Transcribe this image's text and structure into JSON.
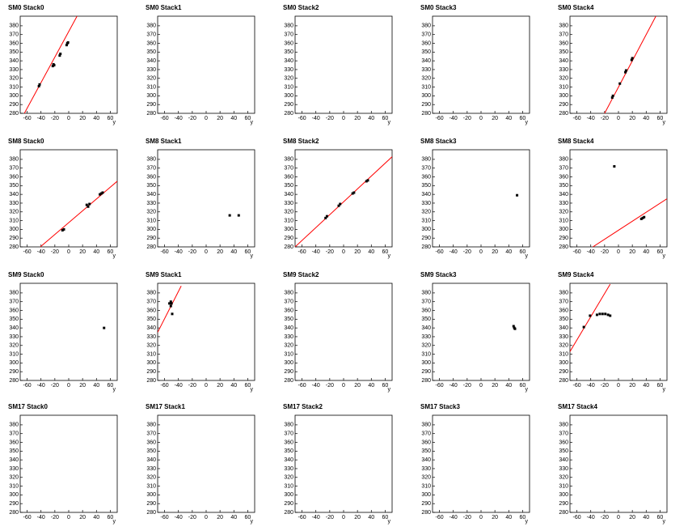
{
  "chart_data": [
    {
      "type": "scatter",
      "title": "SM0 Stack0",
      "xlabel": "y",
      "xlim": [
        -70,
        70
      ],
      "ylim": [
        280,
        391
      ],
      "xticks": [
        -60,
        -40,
        -20,
        0,
        20,
        40,
        60
      ],
      "yticks": [
        280,
        290,
        300,
        310,
        320,
        330,
        340,
        350,
        360,
        370,
        380
      ],
      "color": "#000000",
      "points": {
        "x": [
          -43,
          -42,
          -23,
          -22,
          -21,
          -13,
          -12,
          -3,
          -2,
          -1
        ],
        "y": [
          311,
          313,
          334,
          336,
          335,
          346,
          348,
          358,
          360,
          361
        ]
      },
      "fit": {
        "x": [
          -64,
          12
        ],
        "y": [
          280,
          391
        ],
        "color": "#ff0000"
      }
    },
    {
      "type": "scatter",
      "title": "SM0 Stack1",
      "xlabel": "y",
      "xlim": [
        -70,
        70
      ],
      "ylim": [
        280,
        391
      ],
      "xticks": [
        -60,
        -40,
        -20,
        0,
        20,
        40,
        60
      ],
      "yticks": [
        280,
        290,
        300,
        310,
        320,
        330,
        340,
        350,
        360,
        370,
        380
      ],
      "color": "#000000",
      "points": {
        "x": [],
        "y": []
      }
    },
    {
      "type": "scatter",
      "title": "SM0 Stack2",
      "xlabel": "y",
      "xlim": [
        -70,
        70
      ],
      "ylim": [
        280,
        391
      ],
      "xticks": [
        -60,
        -40,
        -20,
        0,
        20,
        40,
        60
      ],
      "yticks": [
        280,
        290,
        300,
        310,
        320,
        330,
        340,
        350,
        360,
        370,
        380
      ],
      "color": "#000000",
      "points": {
        "x": [],
        "y": []
      }
    },
    {
      "type": "scatter",
      "title": "SM0 Stack3",
      "xlabel": "y",
      "xlim": [
        -70,
        70
      ],
      "ylim": [
        280,
        391
      ],
      "xticks": [
        -60,
        -40,
        -20,
        0,
        20,
        40,
        60
      ],
      "yticks": [
        280,
        290,
        300,
        310,
        320,
        330,
        340,
        350,
        360,
        370,
        380
      ],
      "color": "#000000",
      "points": {
        "x": [],
        "y": []
      }
    },
    {
      "type": "scatter",
      "title": "SM0 Stack4",
      "xlabel": "y",
      "xlim": [
        -70,
        70
      ],
      "ylim": [
        280,
        391
      ],
      "xticks": [
        -60,
        -40,
        -20,
        0,
        20,
        40,
        60
      ],
      "yticks": [
        280,
        290,
        300,
        310,
        320,
        330,
        340,
        350,
        360,
        370,
        380
      ],
      "color": "#000000",
      "points": {
        "x": [
          -9,
          -8,
          2,
          10,
          11,
          19,
          20
        ],
        "y": [
          298,
          300,
          314,
          327,
          329,
          341,
          343
        ]
      },
      "fit": {
        "x": [
          -20,
          54
        ],
        "y": [
          280,
          391
        ],
        "color": "#ff0000"
      }
    },
    {
      "type": "scatter",
      "title": "SM8 Stack0",
      "xlabel": "y",
      "xlim": [
        -70,
        70
      ],
      "ylim": [
        280,
        391
      ],
      "xticks": [
        -60,
        -40,
        -20,
        0,
        20,
        40,
        60
      ],
      "yticks": [
        280,
        290,
        300,
        310,
        320,
        330,
        340,
        350,
        360,
        370,
        380
      ],
      "color": "#000000",
      "points": {
        "x": [
          -9,
          -7,
          26,
          28,
          30,
          45,
          47,
          49
        ],
        "y": [
          299,
          300,
          328,
          326,
          329,
          340,
          341,
          342
        ]
      },
      "fit": {
        "x": [
          -41,
          70
        ],
        "y": [
          280,
          355
        ],
        "color": "#ff0000"
      }
    },
    {
      "type": "scatter",
      "title": "SM8 Stack1",
      "xlabel": "y",
      "xlim": [
        -70,
        70
      ],
      "ylim": [
        280,
        391
      ],
      "xticks": [
        -60,
        -40,
        -20,
        0,
        20,
        40,
        60
      ],
      "yticks": [
        280,
        290,
        300,
        310,
        320,
        330,
        340,
        350,
        360,
        370,
        380
      ],
      "color": "#000000",
      "points": {
        "x": [
          34,
          47
        ],
        "y": [
          316,
          316
        ]
      }
    },
    {
      "type": "scatter",
      "title": "SM8 Stack2",
      "xlabel": "y",
      "xlim": [
        -70,
        70
      ],
      "ylim": [
        280,
        391
      ],
      "xticks": [
        -60,
        -40,
        -20,
        0,
        20,
        40,
        60
      ],
      "yticks": [
        280,
        290,
        300,
        310,
        320,
        330,
        340,
        350,
        360,
        370,
        380
      ],
      "color": "#000000",
      "points": {
        "x": [
          -26,
          -24,
          -7,
          -5,
          13,
          15,
          33,
          35
        ],
        "y": [
          313,
          315,
          327,
          329,
          341,
          342,
          355,
          356
        ]
      },
      "fit": {
        "x": [
          -70,
          70
        ],
        "y": [
          280,
          383
        ],
        "color": "#ff0000"
      }
    },
    {
      "type": "scatter",
      "title": "SM8 Stack3",
      "xlabel": "y",
      "xlim": [
        -70,
        70
      ],
      "ylim": [
        280,
        391
      ],
      "xticks": [
        -60,
        -40,
        -20,
        0,
        20,
        40,
        60
      ],
      "yticks": [
        280,
        290,
        300,
        310,
        320,
        330,
        340,
        350,
        360,
        370,
        380
      ],
      "color": "#000000",
      "points": {
        "x": [
          52
        ],
        "y": [
          339
        ]
      }
    },
    {
      "type": "scatter",
      "title": "SM8 Stack4",
      "xlabel": "y",
      "xlim": [
        -70,
        70
      ],
      "ylim": [
        280,
        391
      ],
      "xticks": [
        -60,
        -40,
        -20,
        0,
        20,
        40,
        60
      ],
      "yticks": [
        280,
        290,
        300,
        310,
        320,
        330,
        340,
        350,
        360,
        370,
        380
      ],
      "color": "#000000",
      "points": {
        "x": [
          -6,
          33,
          35,
          37
        ],
        "y": [
          372,
          312,
          313,
          314
        ]
      },
      "fit": {
        "x": [
          -37,
          70
        ],
        "y": [
          280,
          335
        ],
        "color": "#ff0000"
      }
    },
    {
      "type": "scatter",
      "title": "SM9 Stack0",
      "xlabel": "y",
      "xlim": [
        -70,
        70
      ],
      "ylim": [
        280,
        391
      ],
      "xticks": [
        -60,
        -40,
        -20,
        0,
        20,
        40,
        60
      ],
      "yticks": [
        280,
        290,
        300,
        310,
        320,
        330,
        340,
        350,
        360,
        370,
        380
      ],
      "color": "#000000",
      "points": {
        "x": [
          51
        ],
        "y": [
          340
        ]
      }
    },
    {
      "type": "scatter",
      "title": "SM9 Stack1",
      "xlabel": "y",
      "xlim": [
        -70,
        70
      ],
      "ylim": [
        280,
        391
      ],
      "xticks": [
        -60,
        -40,
        -20,
        0,
        20,
        40,
        60
      ],
      "yticks": [
        280,
        290,
        300,
        310,
        320,
        330,
        340,
        350,
        360,
        370,
        380
      ],
      "color": "#000000",
      "points": {
        "x": [
          -53,
          -51,
          -50,
          -51,
          -49
        ],
        "y": [
          368,
          370,
          368,
          365,
          356
        ]
      },
      "fit": {
        "x": [
          -70,
          -36
        ],
        "y": [
          335,
          388
        ],
        "color": "#ff0000"
      }
    },
    {
      "type": "scatter",
      "title": "SM9 Stack2",
      "xlabel": "y",
      "xlim": [
        -70,
        70
      ],
      "ylim": [
        280,
        391
      ],
      "xticks": [
        -60,
        -40,
        -20,
        0,
        20,
        40,
        60
      ],
      "yticks": [
        280,
        290,
        300,
        310,
        320,
        330,
        340,
        350,
        360,
        370,
        380
      ],
      "color": "#000000",
      "points": {
        "x": [],
        "y": []
      }
    },
    {
      "type": "scatter",
      "title": "SM9 Stack3",
      "xlabel": "y",
      "xlim": [
        -70,
        70
      ],
      "ylim": [
        280,
        391
      ],
      "xticks": [
        -60,
        -40,
        -20,
        0,
        20,
        40,
        60
      ],
      "yticks": [
        280,
        290,
        300,
        310,
        320,
        330,
        340,
        350,
        360,
        370,
        380
      ],
      "color": "#000000",
      "points": {
        "x": [
          47,
          48,
          49
        ],
        "y": [
          342,
          340,
          339
        ]
      }
    },
    {
      "type": "scatter",
      "title": "SM9 Stack4",
      "xlabel": "y",
      "xlim": [
        -70,
        70
      ],
      "ylim": [
        280,
        391
      ],
      "xticks": [
        -60,
        -40,
        -20,
        0,
        20,
        40,
        60
      ],
      "yticks": [
        280,
        290,
        300,
        310,
        320,
        330,
        340,
        350,
        360,
        370,
        380
      ],
      "color": "#000000",
      "points": {
        "x": [
          -50,
          -41,
          -31,
          -27,
          -23,
          -19,
          -15,
          -12
        ],
        "y": [
          341,
          354,
          355,
          356,
          356,
          356,
          355,
          354
        ]
      },
      "fit": {
        "x": [
          -70,
          -12
        ],
        "y": [
          313,
          390
        ],
        "color": "#ff0000"
      }
    },
    {
      "type": "scatter",
      "title": "SM17 Stack0",
      "xlabel": "y",
      "xlim": [
        -70,
        70
      ],
      "ylim": [
        280,
        391
      ],
      "xticks": [
        -60,
        -40,
        -20,
        0,
        20,
        40,
        60
      ],
      "yticks": [
        280,
        290,
        300,
        310,
        320,
        330,
        340,
        350,
        360,
        370,
        380
      ],
      "color": "#000000",
      "points": {
        "x": [],
        "y": []
      }
    },
    {
      "type": "scatter",
      "title": "SM17 Stack1",
      "xlabel": "y",
      "xlim": [
        -70,
        70
      ],
      "ylim": [
        280,
        391
      ],
      "xticks": [
        -60,
        -40,
        -20,
        0,
        20,
        40,
        60
      ],
      "yticks": [
        280,
        290,
        300,
        310,
        320,
        330,
        340,
        350,
        360,
        370,
        380
      ],
      "color": "#000000",
      "points": {
        "x": [],
        "y": []
      }
    },
    {
      "type": "scatter",
      "title": "SM17 Stack2",
      "xlabel": "y",
      "xlim": [
        -70,
        70
      ],
      "ylim": [
        280,
        391
      ],
      "xticks": [
        -60,
        -40,
        -20,
        0,
        20,
        40,
        60
      ],
      "yticks": [
        280,
        290,
        300,
        310,
        320,
        330,
        340,
        350,
        360,
        370,
        380
      ],
      "color": "#000000",
      "points": {
        "x": [],
        "y": []
      }
    },
    {
      "type": "scatter",
      "title": "SM17 Stack3",
      "xlabel": "y",
      "xlim": [
        -70,
        70
      ],
      "ylim": [
        280,
        391
      ],
      "xticks": [
        -60,
        -40,
        -20,
        0,
        20,
        40,
        60
      ],
      "yticks": [
        280,
        290,
        300,
        310,
        320,
        330,
        340,
        350,
        360,
        370,
        380
      ],
      "color": "#000000",
      "points": {
        "x": [],
        "y": []
      }
    },
    {
      "type": "scatter",
      "title": "SM17 Stack4",
      "xlabel": "y",
      "xlim": [
        -70,
        70
      ],
      "ylim": [
        280,
        391
      ],
      "xticks": [
        -60,
        -40,
        -20,
        0,
        20,
        40,
        60
      ],
      "yticks": [
        280,
        290,
        300,
        310,
        320,
        330,
        340,
        350,
        360,
        370,
        380
      ],
      "color": "#000000",
      "points": {
        "x": [],
        "y": []
      }
    }
  ]
}
